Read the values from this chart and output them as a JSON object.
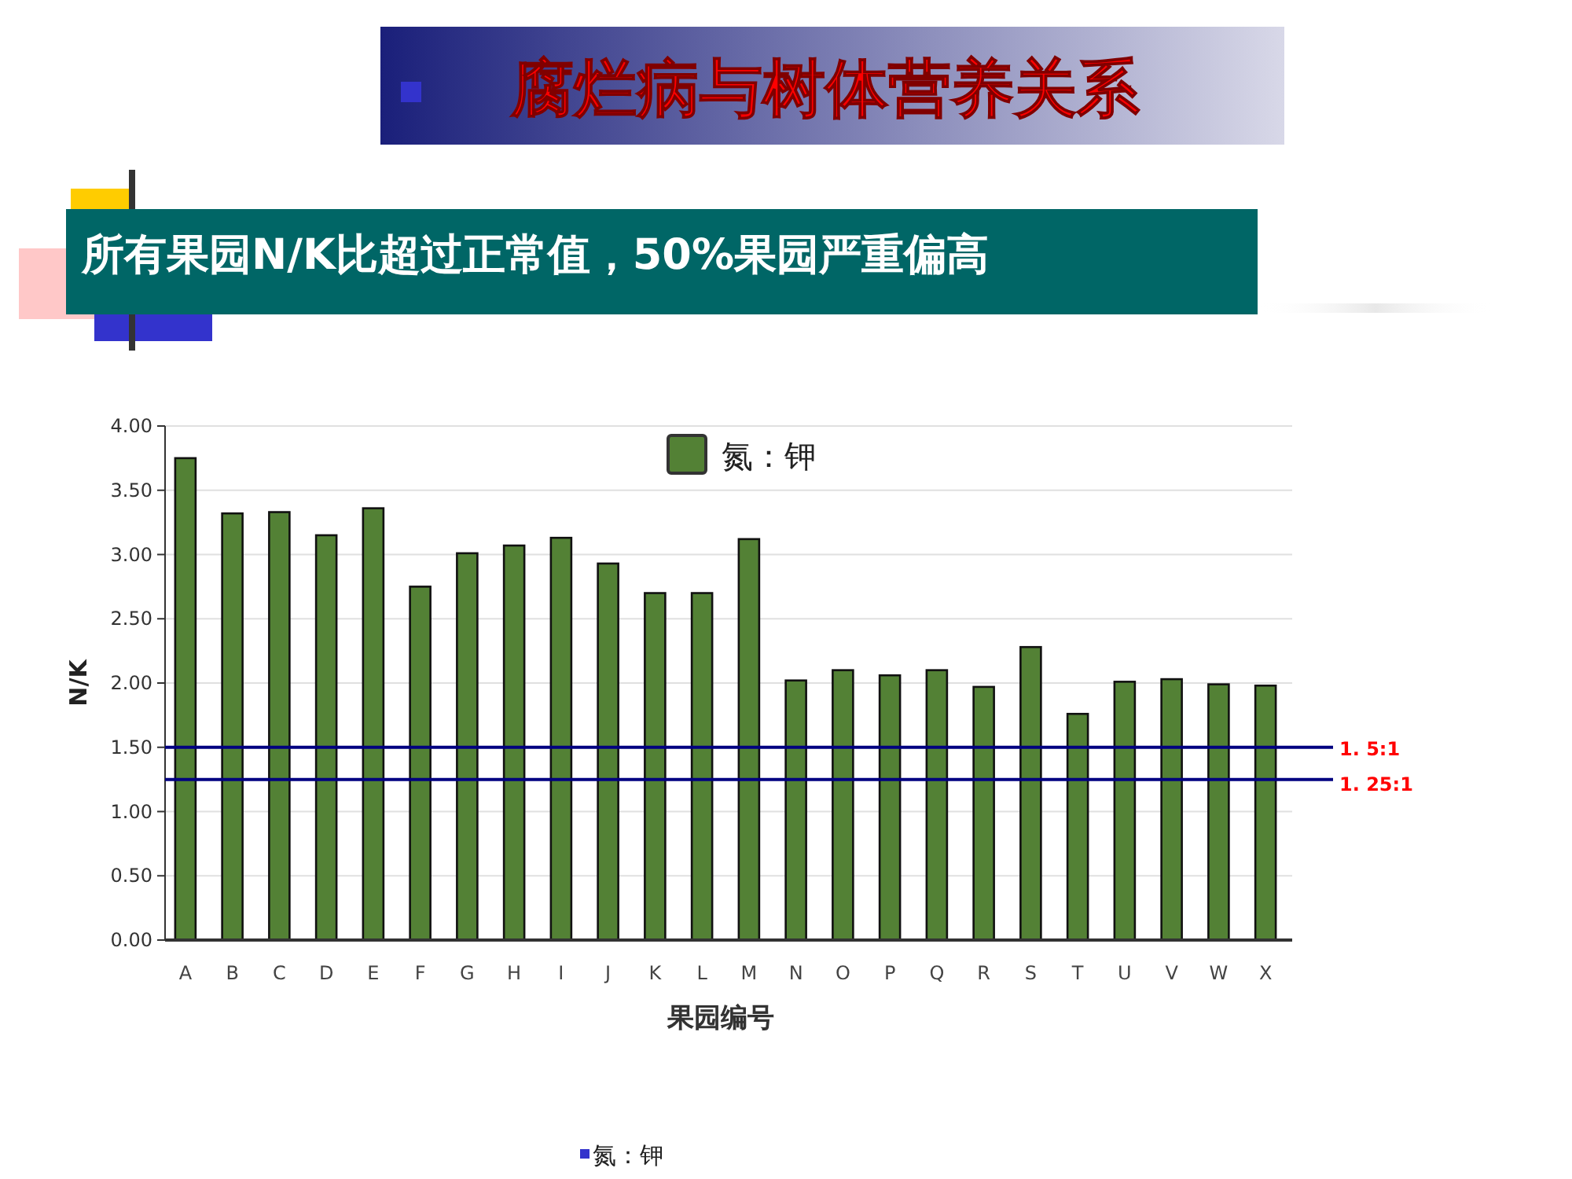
{
  "chart_data": {
    "type": "bar",
    "title": "腐烂病与树体营养关系",
    "subtitle": "所有果园N/K比超过正常值，50%果园严重偏高",
    "xlabel": "果园编号",
    "ylabel": "N/K",
    "categories": [
      "A",
      "B",
      "C",
      "D",
      "E",
      "F",
      "G",
      "H",
      "I",
      "J",
      "K",
      "L",
      "M",
      "N",
      "O",
      "P",
      "Q",
      "R",
      "S",
      "T",
      "U",
      "V",
      "W",
      "X"
    ],
    "series": [
      {
        "name": "氮：钾",
        "color": "#538135",
        "values": [
          3.75,
          3.32,
          3.33,
          3.15,
          3.36,
          2.75,
          3.01,
          3.07,
          3.13,
          2.93,
          2.7,
          2.7,
          3.12,
          2.02,
          2.1,
          2.06,
          2.1,
          1.97,
          2.28,
          1.76,
          2.01,
          2.03,
          1.99,
          1.98
        ]
      }
    ],
    "ylim": [
      0,
      4
    ],
    "yticks": [
      {
        "value": 0,
        "label": "0.00"
      },
      {
        "value": 0.5,
        "label": "0.50"
      },
      {
        "value": 1,
        "label": "1.00"
      },
      {
        "value": 1.5,
        "label": "1.50"
      },
      {
        "value": 2,
        "label": "2.00"
      },
      {
        "value": 2.5,
        "label": "2.50"
      },
      {
        "value": 3,
        "label": "3.00"
      },
      {
        "value": 3.5,
        "label": "3.50"
      },
      {
        "value": 4,
        "label": "4.00"
      }
    ],
    "grid": "y",
    "legend": "top",
    "ref_lines": [
      {
        "axis": "y",
        "value": 1.5,
        "label": "1. 5:1",
        "color": "#000080"
      },
      {
        "axis": "y",
        "value": 1.25,
        "label": "1. 25:1",
        "color": "#000080"
      }
    ],
    "annotations": [
      "氮：钾"
    ]
  }
}
